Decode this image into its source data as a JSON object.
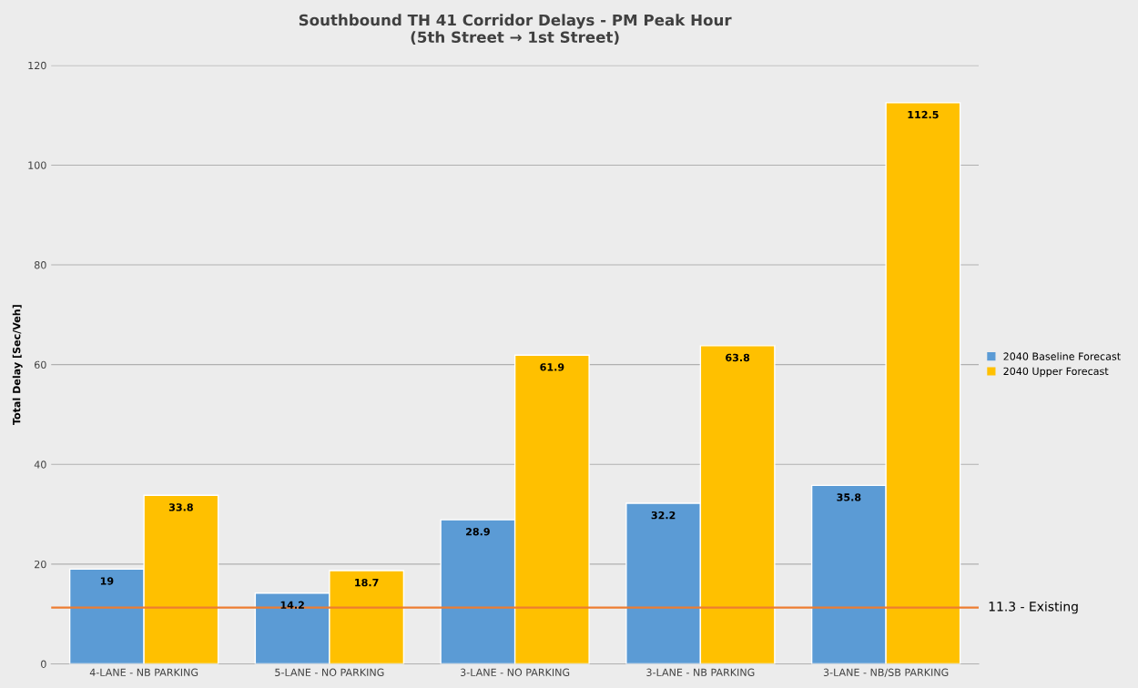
{
  "chart_data": {
    "type": "bar",
    "title": "Southbound TH 41 Corridor Delays - PM Peak Hour\n(5th Street → 1st Street)",
    "ylabel": "Total Delay [Sec/Veh]",
    "categories": [
      "4-LANE - NB PARKING",
      "5-LANE - NO PARKING",
      "3-LANE - NO PARKING",
      "3-LANE - NB PARKING",
      "3-LANE - NB/SB PARKING"
    ],
    "series": [
      {
        "name": "2040 Baseline Forecast",
        "color": "#5b9bd5",
        "values": [
          19,
          14.2,
          28.9,
          32.2,
          35.8
        ]
      },
      {
        "name": "2040 Upper Forecast",
        "color": "#ffc000",
        "values": [
          33.8,
          18.7,
          61.9,
          63.8,
          112.5
        ]
      }
    ],
    "ylim": [
      0,
      120
    ],
    "yticks": [
      0,
      20,
      40,
      60,
      80,
      100,
      120
    ],
    "grid": "y",
    "legend": "right",
    "data_labels": true,
    "ref_lines": [
      {
        "axis": "y",
        "value": 11.3,
        "label": "11.3 - Existing",
        "color": "#ed7d31"
      }
    ]
  }
}
